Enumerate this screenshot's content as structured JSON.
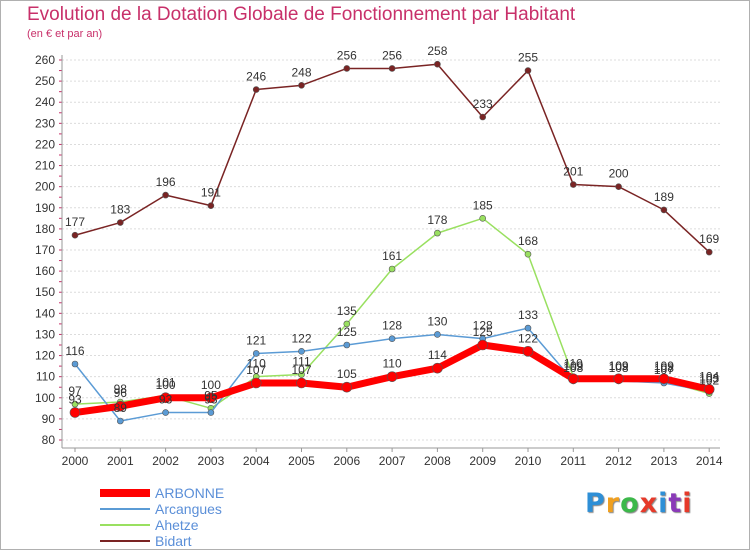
{
  "title": "Evolution de la Dotation Globale de Fonctionnement par Habitant",
  "subtitle": "(en € et par an)",
  "logo": {
    "text": "Proxiti",
    "colors": [
      "#2e8fd6",
      "#f0a020",
      "#3cb84a",
      "#e63a2a",
      "#2e8fd6",
      "#8a3ab8",
      "#e63a2a"
    ]
  },
  "chart_data": {
    "type": "line",
    "title": "Evolution de la Dotation Globale de Fonctionnement par Habitant",
    "ylabel": "(en € et par an)",
    "xlabel": "",
    "ylim": [
      80,
      260
    ],
    "yticks": [
      80,
      90,
      100,
      110,
      120,
      130,
      140,
      150,
      160,
      170,
      180,
      190,
      200,
      210,
      220,
      230,
      240,
      250,
      260
    ],
    "grid": true,
    "legend_position": "bottom-left",
    "categories": [
      "2000",
      "2001",
      "2002",
      "2003",
      "2004",
      "2005",
      "2006",
      "2007",
      "2008",
      "2009",
      "2010",
      "2011",
      "2012",
      "2013",
      "2014"
    ],
    "series": [
      {
        "name": "Bidart",
        "color": "#7a2424",
        "values": [
          177,
          183,
          196,
          191,
          246,
          248,
          256,
          256,
          258,
          233,
          255,
          201,
          200,
          189,
          169
        ]
      },
      {
        "name": "Ahetze",
        "color": "#99e060",
        "values": [
          97,
          98,
          101,
          95,
          110,
          111,
          135,
          161,
          178,
          185,
          168,
          110,
          109,
          108,
          102
        ]
      },
      {
        "name": "Arcangues",
        "color": "#5b9bd5",
        "values": [
          116,
          89,
          93,
          93,
          121,
          122,
          125,
          128,
          130,
          128,
          133,
          108,
          108,
          107,
          103
        ]
      },
      {
        "name": "ARBONNE",
        "color": "#ff0000",
        "values": [
          93,
          96,
          100,
          100,
          107,
          107,
          105,
          110,
          114,
          125,
          122,
          109,
          109,
          109,
          104
        ]
      }
    ],
    "labels_shown": {
      "Bidart": [
        "177",
        "183",
        "196",
        "191",
        "246",
        "248",
        "256",
        "256",
        "258",
        "233",
        "255",
        "201",
        "200",
        "189",
        "169"
      ],
      "Ahetze": [
        "97",
        "98",
        "101",
        "95",
        "110",
        "111",
        "135",
        "161",
        "178",
        "185",
        "168",
        "110",
        "109",
        "108",
        "102"
      ],
      "Arcangues": [
        "116",
        "89",
        "93",
        "93",
        "121",
        "122",
        "125",
        "128",
        "130",
        "128",
        "133",
        "108",
        "108",
        "107",
        "103"
      ],
      "ARBONNE": [
        "93",
        "96",
        "100",
        "100",
        "107",
        "107",
        "105",
        "110",
        "114",
        "125",
        "122",
        "109",
        "109",
        "109",
        "104"
      ]
    },
    "legend": [
      "ARBONNE",
      "Arcangues",
      "Ahetze",
      "Bidart"
    ]
  }
}
